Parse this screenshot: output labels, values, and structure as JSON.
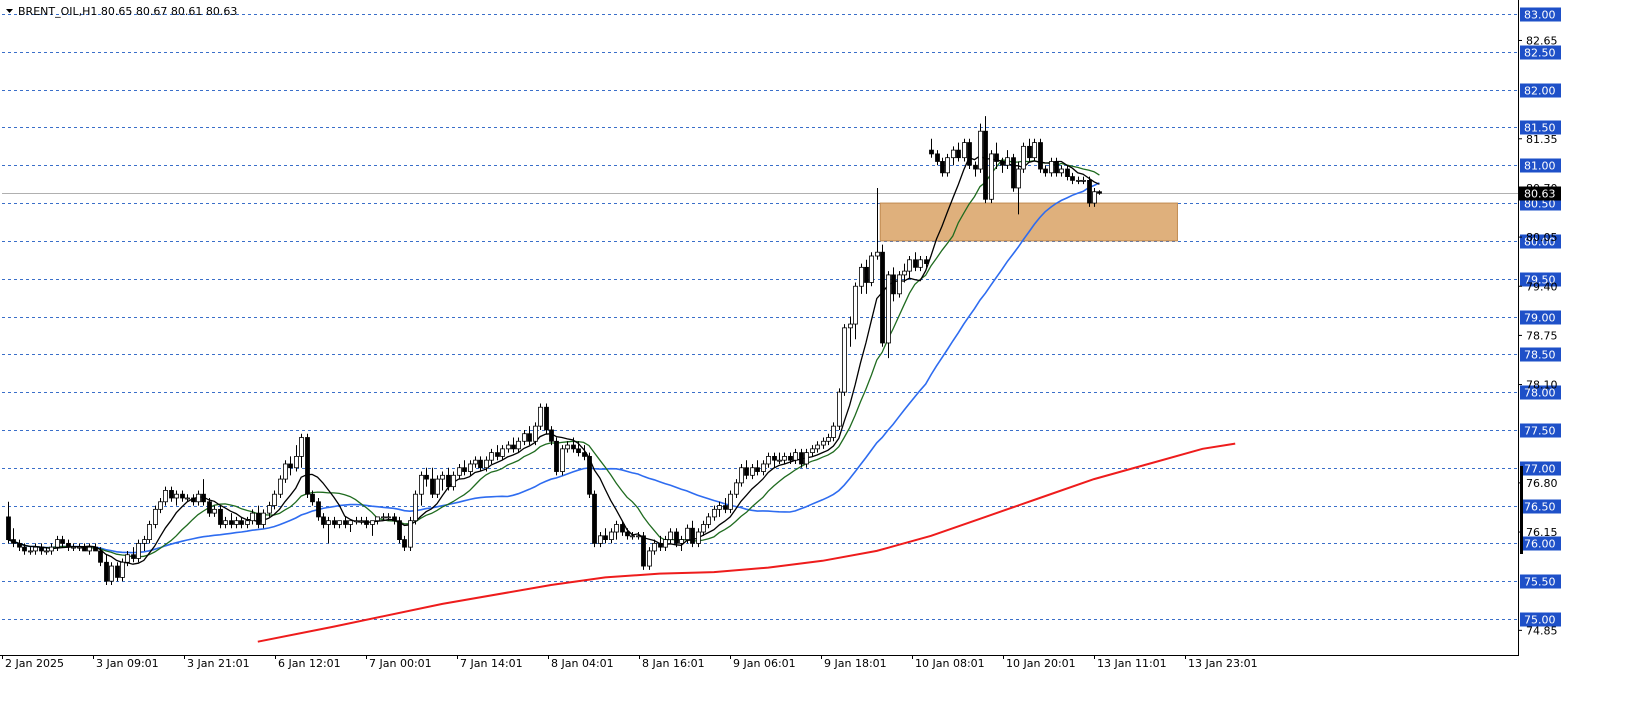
{
  "header": {
    "symbol_text": "BRENT_OIL,H1 80.65 80.67 80.61 80.63"
  },
  "colors": {
    "up_candle": "#ffffff",
    "down_candle": "#000000",
    "grid": "#3a6fc9",
    "tag_bg": "#1e50c8",
    "ma_black": "#000000",
    "ma_green": "#1f6b1f",
    "ma_blue": "#2e6cf0",
    "ma_red": "#ee1c1c",
    "zone_fill": "#dfb07c"
  },
  "chart_data": {
    "type": "candlestick",
    "title": "BRENT_OIL,H1 80.65 80.67 80.61 80.63",
    "ylim": [
      74.7,
      83.05
    ],
    "price_levels": [
      "83.00",
      "82.50",
      "82.00",
      "81.50",
      "81.00",
      "80.50",
      "80.00",
      "79.50",
      "79.00",
      "78.50",
      "78.00",
      "77.50",
      "77.00",
      "76.50",
      "76.00",
      "75.50",
      "75.00"
    ],
    "minor_tick_labels": [
      {
        "label": "82.65",
        "value": 82.65
      },
      {
        "label": "81.35",
        "value": 81.35
      },
      {
        "label": "80.70",
        "value": 80.7
      },
      {
        "label": "80.05",
        "value": 80.05
      },
      {
        "label": "79.40",
        "value": 79.4
      },
      {
        "label": "78.75",
        "value": 78.75
      },
      {
        "label": "78.10",
        "value": 78.1
      },
      {
        "label": "76.80",
        "value": 76.8
      },
      {
        "label": "76.15",
        "value": 76.15
      },
      {
        "label": "74.85",
        "value": 74.85
      }
    ],
    "current_price": {
      "label": "80.63",
      "value": 80.63
    },
    "x_labels": [
      "2 Jan 2025",
      "3 Jan 09:01",
      "3 Jan 21:01",
      "6 Jan 12:01",
      "7 Jan 00:01",
      "7 Jan 14:01",
      "8 Jan 04:01",
      "8 Jan 16:01",
      "9 Jan 06:01",
      "9 Jan 18:01",
      "10 Jan 08:01",
      "10 Jan 20:01",
      "13 Jan 11:01",
      "13 Jan 23:01"
    ],
    "zone": {
      "from_price": 80.0,
      "to_price": 80.5,
      "from_index": 161,
      "to_index": 215
    },
    "candles": [
      [
        76.35,
        76.55,
        76.0,
        76.05
      ],
      [
        76.05,
        76.2,
        75.95,
        76.0
      ],
      [
        76.0,
        76.05,
        75.9,
        75.95
      ],
      [
        75.95,
        76.0,
        75.85,
        75.9
      ],
      [
        75.9,
        75.95,
        75.85,
        75.9
      ],
      [
        75.9,
        76.0,
        75.85,
        75.95
      ],
      [
        75.95,
        76.0,
        75.85,
        75.9
      ],
      [
        75.9,
        75.95,
        75.85,
        75.9
      ],
      [
        75.9,
        76.0,
        75.85,
        75.95
      ],
      [
        75.95,
        76.1,
        75.9,
        76.05
      ],
      [
        76.05,
        76.1,
        75.95,
        76.0
      ],
      [
        76.0,
        76.05,
        75.9,
        75.95
      ],
      [
        75.95,
        76.0,
        75.9,
        75.95
      ],
      [
        75.95,
        76.0,
        75.9,
        75.95
      ],
      [
        75.95,
        76.0,
        75.9,
        75.9
      ],
      [
        75.9,
        76.0,
        75.85,
        75.95
      ],
      [
        75.95,
        76.0,
        75.9,
        75.9
      ],
      [
        75.9,
        75.95,
        75.7,
        75.75
      ],
      [
        75.75,
        75.85,
        75.45,
        75.5
      ],
      [
        75.5,
        75.75,
        75.45,
        75.7
      ],
      [
        75.7,
        75.75,
        75.5,
        75.55
      ],
      [
        75.55,
        75.8,
        75.5,
        75.75
      ],
      [
        75.75,
        75.9,
        75.7,
        75.85
      ],
      [
        75.85,
        75.95,
        75.75,
        75.8
      ],
      [
        75.8,
        76.05,
        75.75,
        76.0
      ],
      [
        76.0,
        76.1,
        75.9,
        76.05
      ],
      [
        76.05,
        76.3,
        76.0,
        76.25
      ],
      [
        76.25,
        76.5,
        76.2,
        76.45
      ],
      [
        76.45,
        76.6,
        76.4,
        76.55
      ],
      [
        76.55,
        76.75,
        76.5,
        76.7
      ],
      [
        76.7,
        76.75,
        76.55,
        76.6
      ],
      [
        76.6,
        76.7,
        76.5,
        76.65
      ],
      [
        76.65,
        76.7,
        76.55,
        76.6
      ],
      [
        76.6,
        76.65,
        76.55,
        76.6
      ],
      [
        76.6,
        76.65,
        76.5,
        76.55
      ],
      [
        76.55,
        76.7,
        76.5,
        76.65
      ],
      [
        76.65,
        76.85,
        76.5,
        76.55
      ],
      [
        76.55,
        76.6,
        76.35,
        76.4
      ],
      [
        76.4,
        76.5,
        76.35,
        76.45
      ],
      [
        76.45,
        76.5,
        76.2,
        76.25
      ],
      [
        76.25,
        76.35,
        76.2,
        76.3
      ],
      [
        76.3,
        76.4,
        76.2,
        76.25
      ],
      [
        76.25,
        76.35,
        76.2,
        76.3
      ],
      [
        76.3,
        76.35,
        76.2,
        76.25
      ],
      [
        76.25,
        76.35,
        76.2,
        76.3
      ],
      [
        76.3,
        76.45,
        76.25,
        76.4
      ],
      [
        76.4,
        76.5,
        76.2,
        76.25
      ],
      [
        76.25,
        76.45,
        76.2,
        76.4
      ],
      [
        76.4,
        76.55,
        76.35,
        76.5
      ],
      [
        76.5,
        76.7,
        76.45,
        76.65
      ],
      [
        76.65,
        76.9,
        76.6,
        76.85
      ],
      [
        76.85,
        77.1,
        76.8,
        77.05
      ],
      [
        77.05,
        77.15,
        76.9,
        77.0
      ],
      [
        77.0,
        77.3,
        76.95,
        77.15
      ],
      [
        77.15,
        77.45,
        77.0,
        77.4
      ],
      [
        77.4,
        77.45,
        76.6,
        76.65
      ],
      [
        76.65,
        76.7,
        76.5,
        76.55
      ],
      [
        76.55,
        76.6,
        76.3,
        76.35
      ],
      [
        76.35,
        76.4,
        76.2,
        76.25
      ],
      [
        76.25,
        76.35,
        76.0,
        76.3
      ],
      [
        76.3,
        76.35,
        76.2,
        76.25
      ],
      [
        76.25,
        76.3,
        76.2,
        76.3
      ],
      [
        76.3,
        76.35,
        76.2,
        76.25
      ],
      [
        76.25,
        76.3,
        76.15,
        76.3
      ],
      [
        76.3,
        76.35,
        76.25,
        76.3
      ],
      [
        76.3,
        76.35,
        76.25,
        76.3
      ],
      [
        76.3,
        76.35,
        76.2,
        76.25
      ],
      [
        76.25,
        76.3,
        76.1,
        76.3
      ],
      [
        76.3,
        76.35,
        76.25,
        76.35
      ],
      [
        76.35,
        76.4,
        76.3,
        76.35
      ],
      [
        76.35,
        76.4,
        76.3,
        76.35
      ],
      [
        76.35,
        76.4,
        76.25,
        76.3
      ],
      [
        76.3,
        76.35,
        76.0,
        76.05
      ],
      [
        76.05,
        76.1,
        75.9,
        75.95
      ],
      [
        75.95,
        76.35,
        75.9,
        76.3
      ],
      [
        76.3,
        76.7,
        76.25,
        76.65
      ],
      [
        76.65,
        76.95,
        76.5,
        76.9
      ],
      [
        76.9,
        77.0,
        76.75,
        76.85
      ],
      [
        76.85,
        77.0,
        76.6,
        76.65
      ],
      [
        76.65,
        76.9,
        76.6,
        76.85
      ],
      [
        76.85,
        76.95,
        76.7,
        76.9
      ],
      [
        76.9,
        77.0,
        76.7,
        76.75
      ],
      [
        76.75,
        76.95,
        76.7,
        76.9
      ],
      [
        76.9,
        77.05,
        76.85,
        77.0
      ],
      [
        77.0,
        77.1,
        76.9,
        76.95
      ],
      [
        76.95,
        77.1,
        76.9,
        77.05
      ],
      [
        77.05,
        77.15,
        77.0,
        77.1
      ],
      [
        77.1,
        77.15,
        76.95,
        77.0
      ],
      [
        77.0,
        77.15,
        76.95,
        77.1
      ],
      [
        77.1,
        77.25,
        77.05,
        77.2
      ],
      [
        77.2,
        77.3,
        77.1,
        77.15
      ],
      [
        77.15,
        77.3,
        77.1,
        77.25
      ],
      [
        77.25,
        77.35,
        77.2,
        77.3
      ],
      [
        77.3,
        77.4,
        77.2,
        77.25
      ],
      [
        77.25,
        77.4,
        77.2,
        77.35
      ],
      [
        77.35,
        77.5,
        77.3,
        77.45
      ],
      [
        77.45,
        77.55,
        77.3,
        77.35
      ],
      [
        77.35,
        77.6,
        77.3,
        77.55
      ],
      [
        77.55,
        77.85,
        77.5,
        77.8
      ],
      [
        77.8,
        77.85,
        77.45,
        77.5
      ],
      [
        77.5,
        77.55,
        77.3,
        77.35
      ],
      [
        77.35,
        77.4,
        76.9,
        76.95
      ],
      [
        76.95,
        77.3,
        76.9,
        77.25
      ],
      [
        77.25,
        77.35,
        77.2,
        77.3
      ],
      [
        77.3,
        77.4,
        77.2,
        77.25
      ],
      [
        77.25,
        77.35,
        77.15,
        77.2
      ],
      [
        77.2,
        77.3,
        77.1,
        77.15
      ],
      [
        77.15,
        77.2,
        76.6,
        76.65
      ],
      [
        76.65,
        76.7,
        75.95,
        76.0
      ],
      [
        76.0,
        76.15,
        75.95,
        76.1
      ],
      [
        76.1,
        76.2,
        76.0,
        76.05
      ],
      [
        76.05,
        76.2,
        76.0,
        76.15
      ],
      [
        76.15,
        76.3,
        76.05,
        76.25
      ],
      [
        76.25,
        76.3,
        76.1,
        76.15
      ],
      [
        76.15,
        76.2,
        76.05,
        76.1
      ],
      [
        76.1,
        76.15,
        76.05,
        76.1
      ],
      [
        76.1,
        76.15,
        76.05,
        76.1
      ],
      [
        76.1,
        76.15,
        75.65,
        75.7
      ],
      [
        75.7,
        75.95,
        75.65,
        75.9
      ],
      [
        75.9,
        76.05,
        75.85,
        76.0
      ],
      [
        76.0,
        76.1,
        75.9,
        75.95
      ],
      [
        75.95,
        76.1,
        75.9,
        76.05
      ],
      [
        76.05,
        76.2,
        76.0,
        76.15
      ],
      [
        76.15,
        76.2,
        75.95,
        76.0
      ],
      [
        76.0,
        76.1,
        75.9,
        76.05
      ],
      [
        76.05,
        76.25,
        76.0,
        76.2
      ],
      [
        76.2,
        76.3,
        75.95,
        76.0
      ],
      [
        76.0,
        76.2,
        75.95,
        76.15
      ],
      [
        76.15,
        76.3,
        76.1,
        76.25
      ],
      [
        76.25,
        76.4,
        76.2,
        76.35
      ],
      [
        76.35,
        76.5,
        76.3,
        76.45
      ],
      [
        76.45,
        76.55,
        76.35,
        76.5
      ],
      [
        76.5,
        76.6,
        76.4,
        76.45
      ],
      [
        76.45,
        76.7,
        76.4,
        76.65
      ],
      [
        76.65,
        76.85,
        76.6,
        76.8
      ],
      [
        76.8,
        77.05,
        76.75,
        77.0
      ],
      [
        77.0,
        77.1,
        76.85,
        76.9
      ],
      [
        76.9,
        77.05,
        76.85,
        77.0
      ],
      [
        77.0,
        77.1,
        76.9,
        76.95
      ],
      [
        76.95,
        77.1,
        76.9,
        77.05
      ],
      [
        77.05,
        77.2,
        77.0,
        77.15
      ],
      [
        77.15,
        77.2,
        77.0,
        77.1
      ],
      [
        77.1,
        77.2,
        77.05,
        77.1
      ],
      [
        77.1,
        77.2,
        77.05,
        77.15
      ],
      [
        77.15,
        77.2,
        77.05,
        77.1
      ],
      [
        77.1,
        77.25,
        77.05,
        77.2
      ],
      [
        77.2,
        77.25,
        77.0,
        77.05
      ],
      [
        77.05,
        77.25,
        77.0,
        77.2
      ],
      [
        77.2,
        77.3,
        77.15,
        77.25
      ],
      [
        77.25,
        77.35,
        77.2,
        77.3
      ],
      [
        77.3,
        77.4,
        77.25,
        77.35
      ],
      [
        77.35,
        77.45,
        77.3,
        77.4
      ],
      [
        77.4,
        77.6,
        77.35,
        77.55
      ],
      [
        77.55,
        78.05,
        77.5,
        78.0
      ],
      [
        78.0,
        78.9,
        77.95,
        78.85
      ],
      [
        78.85,
        79.0,
        78.6,
        78.9
      ],
      [
        78.9,
        79.45,
        78.7,
        79.4
      ],
      [
        79.4,
        79.7,
        79.3,
        79.65
      ],
      [
        79.65,
        79.75,
        79.3,
        79.45
      ],
      [
        79.45,
        79.85,
        79.4,
        79.8
      ],
      [
        79.8,
        80.7,
        79.75,
        79.85
      ],
      [
        79.85,
        79.95,
        78.6,
        78.65
      ],
      [
        78.65,
        79.6,
        78.45,
        79.55
      ],
      [
        79.55,
        79.65,
        79.2,
        79.3
      ],
      [
        79.3,
        79.6,
        79.25,
        79.55
      ],
      [
        79.55,
        79.7,
        79.45,
        79.6
      ],
      [
        79.6,
        79.8,
        79.5,
        79.75
      ],
      [
        79.75,
        79.85,
        79.6,
        79.65
      ],
      [
        79.65,
        79.8,
        79.6,
        79.75
      ],
      [
        79.75,
        79.8,
        79.65,
        79.7
      ],
      [
        81.2,
        81.35,
        81.1,
        81.15
      ],
      [
        81.15,
        81.2,
        81.0,
        81.05
      ],
      [
        81.05,
        81.1,
        80.85,
        80.9
      ],
      [
        80.9,
        81.15,
        80.85,
        81.1
      ],
      [
        81.1,
        81.25,
        81.0,
        81.2
      ],
      [
        81.2,
        81.3,
        81.05,
        81.1
      ],
      [
        81.1,
        81.35,
        81.05,
        81.3
      ],
      [
        81.3,
        81.35,
        80.95,
        81.0
      ],
      [
        81.0,
        81.05,
        80.85,
        80.95
      ],
      [
        80.95,
        81.55,
        80.9,
        81.45
      ],
      [
        81.45,
        81.65,
        80.5,
        80.55
      ],
      [
        80.55,
        81.2,
        80.5,
        81.15
      ],
      [
        81.15,
        81.3,
        80.95,
        81.05
      ],
      [
        81.05,
        81.1,
        80.9,
        81.0
      ],
      [
        81.0,
        81.2,
        80.95,
        81.1
      ],
      [
        81.1,
        81.15,
        80.65,
        80.7
      ],
      [
        80.7,
        81.05,
        80.35,
        80.95
      ],
      [
        80.95,
        81.3,
        80.9,
        81.25
      ],
      [
        81.25,
        81.35,
        81.05,
        81.1
      ],
      [
        81.1,
        81.35,
        81.05,
        81.3
      ],
      [
        81.3,
        81.35,
        80.9,
        80.95
      ],
      [
        80.95,
        81.0,
        80.85,
        80.9
      ],
      [
        80.9,
        81.1,
        80.85,
        81.05
      ],
      [
        81.05,
        81.1,
        80.85,
        80.9
      ],
      [
        80.9,
        81.0,
        80.85,
        80.95
      ],
      [
        80.95,
        81.0,
        80.8,
        80.85
      ],
      [
        80.85,
        80.9,
        80.75,
        80.8
      ],
      [
        80.8,
        80.85,
        80.75,
        80.8
      ],
      [
        80.8,
        80.85,
        80.75,
        80.8
      ],
      [
        80.8,
        80.85,
        80.45,
        80.5
      ],
      [
        80.5,
        80.7,
        80.45,
        80.65
      ],
      [
        80.65,
        80.67,
        80.61,
        80.63
      ]
    ],
    "moving_averages": [
      {
        "color": "#000000",
        "period": 8
      },
      {
        "color": "#1f6b1f",
        "period": 14
      },
      {
        "color": "#2e6cf0",
        "period": 38
      }
    ],
    "red_ma": [
      [
        46,
        74.7
      ],
      [
        60,
        74.9
      ],
      [
        80,
        75.2
      ],
      [
        100,
        75.45
      ],
      [
        110,
        75.55
      ],
      [
        120,
        75.6
      ],
      [
        130,
        75.62
      ],
      [
        140,
        75.68
      ],
      [
        150,
        75.77
      ],
      [
        160,
        75.9
      ],
      [
        170,
        76.1
      ],
      [
        180,
        76.35
      ],
      [
        190,
        76.6
      ],
      [
        200,
        76.85
      ],
      [
        210,
        77.05
      ],
      [
        220,
        77.25
      ],
      [
        226,
        77.32
      ]
    ],
    "ma_overlay_breaks": [
      160,
      170
    ]
  }
}
